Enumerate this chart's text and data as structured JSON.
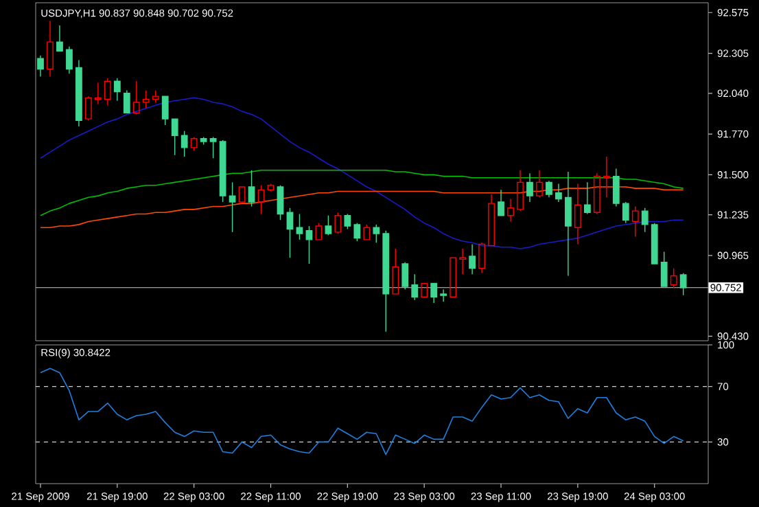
{
  "chart_data": [
    {
      "type": "candlestick",
      "title": "USDJPY,H1 90.837 90.848 90.702 90.752",
      "categories": [
        null,
        null,
        null,
        null,
        null,
        null,
        null,
        null,
        null,
        null,
        null,
        null,
        null,
        null,
        null,
        null,
        null,
        null,
        null,
        null,
        null,
        null,
        null,
        null,
        null,
        null,
        null,
        null,
        null,
        null,
        null,
        null,
        null,
        null,
        null,
        null,
        null,
        null,
        null,
        null,
        null,
        null,
        null,
        null,
        null,
        null,
        null,
        null,
        null,
        null,
        null,
        null,
        null,
        null,
        null,
        null,
        null,
        null,
        null,
        null,
        null,
        null,
        null,
        null,
        null,
        null,
        null,
        null
      ],
      "ohlc": [
        [
          92.27,
          92.29,
          92.15,
          92.2
        ],
        [
          92.2,
          92.52,
          92.15,
          92.38
        ],
        [
          92.38,
          92.49,
          92.32,
          92.32
        ],
        [
          92.33,
          92.35,
          92.17,
          92.2
        ],
        [
          92.21,
          92.26,
          91.82,
          91.86
        ],
        [
          91.87,
          92.02,
          91.86,
          92.01
        ],
        [
          92.0,
          92.11,
          91.97,
          92.01
        ],
        [
          92.0,
          92.14,
          91.96,
          92.12
        ],
        [
          92.12,
          92.14,
          91.99,
          92.05
        ],
        [
          92.04,
          92.06,
          91.91,
          91.91
        ],
        [
          91.91,
          92.12,
          91.9,
          91.98
        ],
        [
          91.98,
          92.06,
          91.94,
          92.0
        ],
        [
          92.0,
          92.06,
          91.98,
          92.02
        ],
        [
          92.02,
          92.02,
          91.83,
          91.87
        ],
        [
          91.87,
          91.87,
          91.63,
          91.76
        ],
        [
          91.76,
          91.79,
          91.62,
          91.68
        ],
        [
          91.68,
          91.75,
          91.66,
          91.74
        ],
        [
          91.74,
          91.75,
          91.7,
          91.72
        ],
        [
          91.74,
          91.75,
          91.61,
          91.72
        ],
        [
          91.72,
          91.73,
          91.32,
          91.36
        ],
        [
          91.36,
          91.45,
          91.12,
          91.32
        ],
        [
          91.32,
          91.42,
          91.32,
          91.42
        ],
        [
          91.42,
          91.53,
          91.29,
          91.32
        ],
        [
          91.32,
          91.43,
          91.24,
          91.4
        ],
        [
          91.4,
          91.44,
          91.39,
          91.43
        ],
        [
          91.42,
          91.43,
          91.2,
          91.24
        ],
        [
          91.25,
          91.28,
          90.95,
          91.14
        ],
        [
          91.15,
          91.24,
          91.07,
          91.11
        ],
        [
          91.13,
          91.16,
          90.91,
          91.07
        ],
        [
          91.07,
          91.18,
          91.07,
          91.16
        ],
        [
          91.16,
          91.23,
          91.1,
          91.11
        ],
        [
          91.12,
          91.25,
          91.11,
          91.23
        ],
        [
          91.23,
          91.24,
          91.14,
          91.16
        ],
        [
          91.17,
          91.18,
          91.06,
          91.08
        ],
        [
          91.07,
          91.17,
          91.07,
          91.15
        ],
        [
          91.15,
          91.17,
          91.05,
          91.11
        ],
        [
          91.11,
          91.13,
          90.46,
          90.71
        ],
        [
          90.71,
          91.01,
          90.71,
          90.89
        ],
        [
          90.91,
          90.92,
          90.74,
          90.76
        ],
        [
          90.77,
          90.84,
          90.67,
          90.69
        ],
        [
          90.69,
          90.78,
          90.69,
          90.78
        ],
        [
          90.78,
          90.78,
          90.65,
          90.69
        ],
        [
          90.71,
          90.74,
          90.66,
          90.7
        ],
        [
          90.69,
          90.95,
          90.69,
          90.95
        ],
        [
          90.94,
          91.01,
          90.84,
          90.95
        ],
        [
          90.96,
          91.04,
          90.84,
          90.88
        ],
        [
          90.88,
          91.05,
          90.85,
          91.04
        ],
        [
          91.03,
          91.37,
          91.03,
          91.31
        ],
        [
          91.32,
          91.4,
          91.23,
          91.23
        ],
        [
          91.23,
          91.34,
          91.19,
          91.28
        ],
        [
          91.27,
          91.53,
          91.26,
          91.45
        ],
        [
          91.45,
          91.51,
          91.32,
          91.36
        ],
        [
          91.36,
          91.53,
          91.35,
          91.45
        ],
        [
          91.45,
          91.46,
          91.35,
          91.37
        ],
        [
          91.38,
          91.44,
          91.32,
          91.34
        ],
        [
          91.35,
          91.52,
          90.83,
          91.16
        ],
        [
          91.15,
          91.44,
          91.04,
          91.3
        ],
        [
          91.3,
          91.45,
          91.24,
          91.25
        ],
        [
          91.25,
          91.51,
          91.24,
          91.49
        ],
        [
          91.48,
          91.62,
          91.35,
          91.49
        ],
        [
          91.49,
          91.54,
          91.29,
          91.31
        ],
        [
          91.31,
          91.32,
          91.18,
          91.2
        ],
        [
          91.19,
          91.29,
          91.09,
          91.26
        ],
        [
          91.26,
          91.28,
          91.12,
          91.17
        ],
        [
          91.17,
          91.18,
          90.91,
          90.91
        ],
        [
          90.92,
          90.99,
          90.76,
          90.76
        ],
        [
          90.77,
          90.88,
          90.75,
          90.83
        ],
        [
          90.837,
          90.848,
          90.702,
          90.752
        ]
      ],
      "colors": [
        "#3fd792",
        "#ff0000",
        "#3fd792",
        "#3fd792",
        "#3fd792",
        "#ff0000",
        "#ff0000",
        "#ff0000",
        "#3fd792",
        "#3fd792",
        "#ff0000",
        "#ff0000",
        "#ff0000",
        "#3fd792",
        "#3fd792",
        "#3fd792",
        "#ff0000",
        "#3fd792",
        "#3fd792",
        "#3fd792",
        "#3fd792",
        "#ff0000",
        "#3fd792",
        "#ff0000",
        "#ff0000",
        "#3fd792",
        "#3fd792",
        "#3fd792",
        "#3fd792",
        "#ff0000",
        "#3fd792",
        "#ff0000",
        "#3fd792",
        "#3fd792",
        "#ff0000",
        "#3fd792",
        "#3fd792",
        "#ff0000",
        "#3fd792",
        "#3fd792",
        "#ff0000",
        "#3fd792",
        "#3fd792",
        "#ff0000",
        "#ff0000",
        "#3fd792",
        "#ff0000",
        "#ff0000",
        "#3fd792",
        "#ff0000",
        "#ff0000",
        "#3fd792",
        "#ff0000",
        "#3fd792",
        "#3fd792",
        "#3fd792",
        "#ff0000",
        "#3fd792",
        "#ff0000",
        "#ff0000",
        "#3fd792",
        "#3fd792",
        "#ff0000",
        "#3fd792",
        "#3fd792",
        "#3fd792",
        "#ff0000",
        "#3fd792"
      ],
      "series": [
        {
          "type": "line",
          "color": "#1a1acd",
          "values": [
            91.61,
            91.65,
            91.69,
            91.73,
            91.76,
            91.79,
            91.82,
            91.85,
            91.87,
            91.9,
            91.92,
            91.94,
            91.96,
            91.98,
            91.99,
            92.0,
            92.01,
            92.0,
            91.98,
            91.97,
            91.95,
            91.92,
            91.9,
            91.87,
            91.82,
            91.77,
            91.72,
            91.68,
            91.65,
            91.61,
            91.57,
            91.54,
            91.5,
            91.46,
            91.42,
            91.39,
            91.35,
            91.31,
            91.27,
            91.22,
            91.18,
            91.15,
            91.11,
            91.08,
            91.06,
            91.05,
            91.03,
            91.03,
            91.02,
            91.02,
            91.01,
            91.02,
            91.04,
            91.05,
            91.06,
            91.07,
            91.08,
            91.1,
            91.12,
            91.14,
            91.16,
            91.17,
            91.18,
            91.19,
            91.19,
            91.19,
            91.2,
            91.2
          ]
        },
        {
          "type": "line",
          "color": "#00c000",
          "values": [
            91.23,
            91.26,
            91.28,
            91.31,
            91.33,
            91.35,
            91.36,
            91.38,
            91.39,
            91.41,
            91.42,
            91.43,
            91.43,
            91.44,
            91.45,
            91.46,
            91.47,
            91.48,
            91.49,
            91.5,
            91.51,
            91.51,
            91.52,
            91.53,
            91.53,
            91.53,
            91.53,
            91.53,
            91.53,
            91.53,
            91.53,
            91.53,
            91.53,
            91.53,
            91.53,
            91.53,
            91.53,
            91.52,
            91.52,
            91.51,
            91.5,
            91.5,
            91.49,
            91.49,
            91.49,
            91.48,
            91.48,
            91.48,
            91.48,
            91.48,
            91.48,
            91.48,
            91.48,
            91.48,
            91.48,
            91.48,
            91.48,
            91.48,
            91.48,
            91.48,
            91.48,
            91.47,
            91.47,
            91.46,
            91.45,
            91.44,
            91.42,
            91.41
          ]
        },
        {
          "type": "line",
          "color": "#ff4a00",
          "values": [
            91.15,
            91.15,
            91.16,
            91.16,
            91.17,
            91.19,
            91.2,
            91.21,
            91.22,
            91.23,
            91.24,
            91.24,
            91.25,
            91.25,
            91.26,
            91.27,
            91.27,
            91.28,
            91.29,
            91.29,
            91.3,
            91.31,
            91.31,
            91.32,
            91.33,
            91.34,
            91.35,
            91.36,
            91.37,
            91.38,
            91.38,
            91.39,
            91.39,
            91.39,
            91.39,
            91.39,
            91.39,
            91.39,
            91.39,
            91.39,
            91.39,
            91.39,
            91.38,
            91.38,
            91.38,
            91.38,
            91.38,
            91.38,
            91.38,
            91.38,
            91.38,
            91.39,
            91.39,
            91.4,
            91.4,
            91.41,
            91.41,
            91.41,
            91.42,
            91.42,
            91.42,
            91.42,
            91.41,
            91.41,
            91.41,
            91.4,
            91.4,
            91.4
          ]
        }
      ],
      "ylim": [
        90.4,
        92.64
      ],
      "yticks": [
        92.575,
        92.305,
        {
          "value": 92.04,
          "label": "92.040"
        },
        {
          "value": 91.77,
          "label": "91.770"
        },
        {
          "value": 91.5,
          "label": "91.500"
        },
        91.235,
        90.965,
        {
          "value": 90.43,
          "label": "90.430"
        }
      ],
      "ref_lines": [
        {
          "axis": "y",
          "value": 90.752,
          "label": "90.752",
          "color": "#a0a0a0"
        }
      ],
      "tick_labels": "y"
    },
    {
      "type": "line",
      "title": "RSI(9) 30.8422",
      "categories": [
        "21 Sep 2009",
        null,
        null,
        null,
        null,
        null,
        null,
        null,
        "21 Sep 19:00",
        null,
        null,
        null,
        null,
        null,
        null,
        null,
        "22 Sep 03:00",
        null,
        null,
        null,
        null,
        null,
        null,
        null,
        "22 Sep 11:00",
        null,
        null,
        null,
        null,
        null,
        null,
        null,
        "22 Sep 19:00",
        null,
        null,
        null,
        null,
        null,
        null,
        null,
        "23 Sep 03:00",
        null,
        null,
        null,
        null,
        null,
        null,
        null,
        "23 Sep 11:00",
        null,
        null,
        null,
        null,
        null,
        null,
        null,
        "23 Sep 19:00",
        null,
        null,
        null,
        null,
        null,
        null,
        null,
        "24 Sep 03:00",
        null,
        null,
        null
      ],
      "series": [
        {
          "color": "#1e80e0",
          "values": [
            80,
            83,
            80,
            67,
            46,
            52,
            52,
            58,
            50,
            46,
            49,
            50,
            52,
            44,
            37,
            34,
            38,
            37,
            37,
            23,
            22,
            30,
            26,
            34,
            35,
            28,
            25,
            23,
            22,
            30,
            30,
            40,
            36,
            32,
            37,
            36,
            21,
            35,
            32,
            29,
            35,
            32,
            32,
            48,
            48,
            45,
            55,
            64,
            61,
            62,
            69,
            62,
            64,
            60,
            59,
            47,
            54,
            51,
            62,
            62,
            51,
            46,
            48,
            45,
            34,
            29,
            34,
            30.8422
          ]
        }
      ],
      "ylim": [
        0,
        100
      ],
      "yticks": [
        100,
        70,
        30
      ],
      "ref_lines": [
        {
          "axis": "y",
          "value": 70,
          "color": "#d0d0d0",
          "line_style": "dashed"
        },
        {
          "axis": "y",
          "value": 30,
          "color": "#d0d0d0",
          "line_style": "dashed"
        }
      ]
    }
  ]
}
